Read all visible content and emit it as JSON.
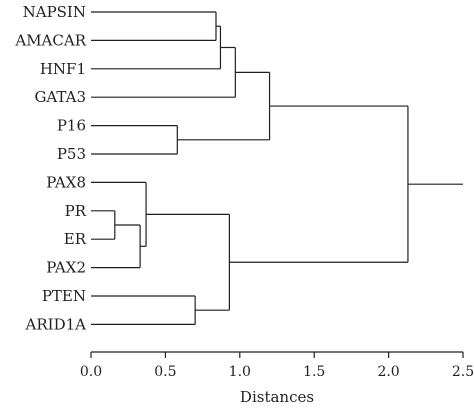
{
  "chart_data": {
    "type": "dendrogram",
    "orientation": "horizontal",
    "xlabel": "Distances",
    "xlim": [
      0,
      2.5
    ],
    "x_ticks": [
      0.0,
      0.5,
      1.0,
      1.5,
      2.0,
      2.5
    ],
    "x_tick_labels": [
      "0.0",
      "0.5",
      "1.0",
      "1.5",
      "2.0",
      "2.5"
    ],
    "leaves": [
      "NAPSIN",
      "AMACAR",
      "HNF1",
      "GATA3",
      "P16",
      "P53",
      "PAX8",
      "PR",
      "ER",
      "PAX2",
      "PTEN",
      "ARID1A"
    ],
    "merges": [
      {
        "id": "m1",
        "children": [
          "NAPSIN",
          "AMACAR"
        ],
        "distance": 0.84
      },
      {
        "id": "m2",
        "children": [
          "m1",
          "HNF1"
        ],
        "distance": 0.87
      },
      {
        "id": "m3",
        "children": [
          "m2",
          "GATA3"
        ],
        "distance": 0.97
      },
      {
        "id": "m4",
        "children": [
          "P16",
          "P53"
        ],
        "distance": 0.58
      },
      {
        "id": "m5",
        "children": [
          "m3",
          "m4"
        ],
        "distance": 1.2
      },
      {
        "id": "m6",
        "children": [
          "PR",
          "ER"
        ],
        "distance": 0.16
      },
      {
        "id": "m7",
        "children": [
          "m6",
          "PAX2"
        ],
        "distance": 0.33
      },
      {
        "id": "m8",
        "children": [
          "PAX8",
          "m7"
        ],
        "distance": 0.37
      },
      {
        "id": "m9",
        "children": [
          "PTEN",
          "ARID1A"
        ],
        "distance": 0.7
      },
      {
        "id": "m10",
        "children": [
          "m8",
          "m9"
        ],
        "distance": 0.93
      },
      {
        "id": "m11",
        "children": [
          "m5",
          "m10"
        ],
        "distance": 2.13
      }
    ],
    "root_extends_to": 2.5
  }
}
